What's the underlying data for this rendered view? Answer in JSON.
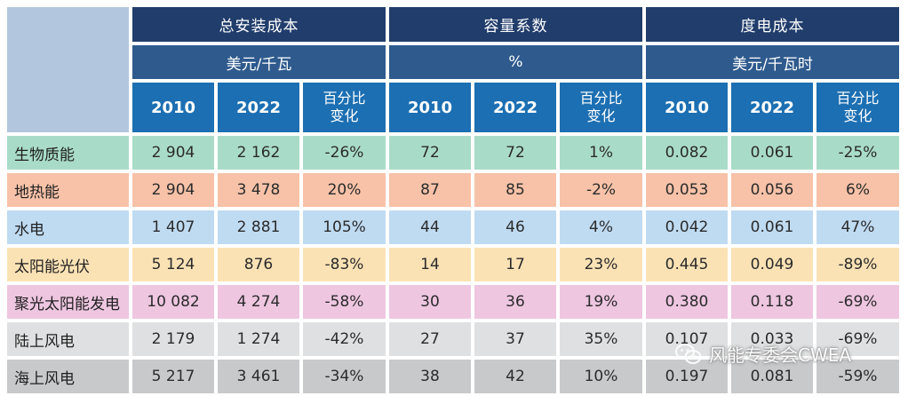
{
  "header": {
    "groups": [
      {
        "title": "总安装成本",
        "unit": "美元/千瓦"
      },
      {
        "title": "容量系数",
        "unit": "%"
      },
      {
        "title": "度电成本",
        "unit": "美元/千瓦时"
      }
    ],
    "year_a": "2010",
    "year_b": "2022",
    "pct_line1": "百分比",
    "pct_line2": "变化"
  },
  "rows": [
    {
      "label": "生物质能",
      "color": "#a9dcc8",
      "values": [
        "2 904",
        "2 162",
        "-26%",
        "72",
        "72",
        "1%",
        "0.082",
        "0.061",
        "-25%"
      ]
    },
    {
      "label": "地热能",
      "color": "#f7c2a8",
      "values": [
        "2 904",
        "3 478",
        "20%",
        "87",
        "85",
        "-2%",
        "0.053",
        "0.056",
        "6%"
      ]
    },
    {
      "label": "水电",
      "color": "#bfdbf2",
      "values": [
        "1 407",
        "2 881",
        "105%",
        "44",
        "46",
        "4%",
        "0.042",
        "0.061",
        "47%"
      ]
    },
    {
      "label": "太阳能光伏",
      "color": "#fbe2b5",
      "values": [
        "5 124",
        "876",
        "-83%",
        "14",
        "17",
        "23%",
        "0.445",
        "0.049",
        "-89%"
      ]
    },
    {
      "label": "聚光太阳能发电",
      "color": "#eec6e0",
      "values": [
        "10 082",
        "4 274",
        "-58%",
        "30",
        "36",
        "19%",
        "0.380",
        "0.118",
        "-69%"
      ]
    },
    {
      "label": "陆上风电",
      "color": "#dfe0e1",
      "values": [
        "2 179",
        "1 274",
        "-42%",
        "27",
        "37",
        "35%",
        "0.107",
        "0.033",
        "-69%"
      ]
    },
    {
      "label": "海上风电",
      "color": "#c8c9cb",
      "values": [
        "5 217",
        "3 461",
        "-34%",
        "38",
        "42",
        "10%",
        "0.197",
        "0.081",
        "-59%"
      ]
    }
  ],
  "watermark": {
    "text": "风能专委会CWEA",
    "icon": "wechat-icon"
  }
}
